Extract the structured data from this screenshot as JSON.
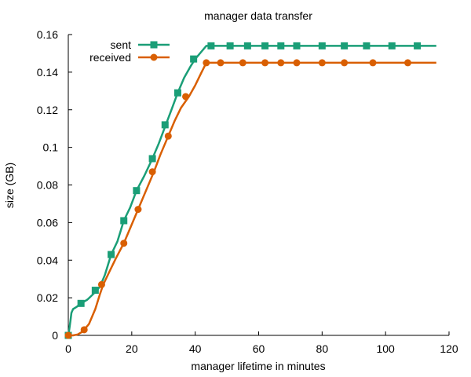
{
  "chart_data": {
    "type": "line",
    "title": "manager data transfer",
    "xlabel": "manager lifetime in minutes",
    "ylabel": "size (GB)",
    "xlim": [
      0,
      120
    ],
    "ylim": [
      0,
      0.16
    ],
    "xticks": [
      0,
      20,
      40,
      60,
      80,
      100,
      120
    ],
    "xtick_labels": [
      "0",
      "20",
      "40",
      "60",
      "80",
      "100",
      "120"
    ],
    "yticks": [
      0,
      0.02,
      0.04,
      0.06,
      0.08,
      0.1,
      0.12,
      0.14,
      0.16
    ],
    "ytick_labels": [
      "0",
      "0.02",
      "0.04",
      "0.06",
      "0.08",
      "0.1",
      "0.12",
      "0.14",
      "0.16"
    ],
    "grid": false,
    "legend_position": "top-left",
    "series": [
      {
        "name": "sent",
        "color": "#1a9e77",
        "marker": "square",
        "line": [
          [
            0,
            0
          ],
          [
            0.3,
            0.003
          ],
          [
            0.7,
            0.008
          ],
          [
            1,
            0.012
          ],
          [
            1.5,
            0.014
          ],
          [
            2.5,
            0.015
          ],
          [
            4,
            0.017
          ],
          [
            6,
            0.019
          ],
          [
            8.5,
            0.023
          ],
          [
            10,
            0.026
          ],
          [
            11.5,
            0.032
          ],
          [
            13.5,
            0.043
          ],
          [
            15.5,
            0.05
          ],
          [
            17.5,
            0.061
          ],
          [
            19.5,
            0.068
          ],
          [
            21.5,
            0.077
          ],
          [
            24,
            0.085
          ],
          [
            26.5,
            0.094
          ],
          [
            28.5,
            0.102
          ],
          [
            30.5,
            0.111
          ],
          [
            32.5,
            0.12
          ],
          [
            34.5,
            0.129
          ],
          [
            36.5,
            0.137
          ],
          [
            38.5,
            0.143
          ],
          [
            40,
            0.147
          ],
          [
            42,
            0.151
          ],
          [
            43.5,
            0.154
          ],
          [
            45,
            0.154
          ],
          [
            116,
            0.154
          ]
        ],
        "markers": [
          [
            0,
            0
          ],
          [
            4,
            0.017
          ],
          [
            8.5,
            0.024
          ],
          [
            13.5,
            0.043
          ],
          [
            17.5,
            0.061
          ],
          [
            21.5,
            0.077
          ],
          [
            26.5,
            0.094
          ],
          [
            30.5,
            0.112
          ],
          [
            34.5,
            0.129
          ],
          [
            39.5,
            0.147
          ],
          [
            45,
            0.154
          ],
          [
            51,
            0.154
          ],
          [
            56.5,
            0.154
          ],
          [
            62,
            0.154
          ],
          [
            67,
            0.154
          ],
          [
            72,
            0.154
          ],
          [
            80,
            0.154
          ],
          [
            87,
            0.154
          ],
          [
            94,
            0.154
          ],
          [
            102,
            0.154
          ],
          [
            110,
            0.154
          ]
        ]
      },
      {
        "name": "received",
        "color": "#d95f02",
        "marker": "circle",
        "line": [
          [
            0,
            0
          ],
          [
            1.5,
            0
          ],
          [
            3,
            0.0005
          ],
          [
            4.5,
            0.002
          ],
          [
            6.5,
            0.006
          ],
          [
            8.5,
            0.014
          ],
          [
            10,
            0.022
          ],
          [
            11,
            0.027
          ],
          [
            13,
            0.034
          ],
          [
            15,
            0.041
          ],
          [
            17.5,
            0.049
          ],
          [
            19.5,
            0.057
          ],
          [
            22,
            0.067
          ],
          [
            24.5,
            0.077
          ],
          [
            27,
            0.087
          ],
          [
            29,
            0.096
          ],
          [
            31.5,
            0.106
          ],
          [
            33.5,
            0.114
          ],
          [
            35.5,
            0.121
          ],
          [
            38,
            0.127
          ],
          [
            40,
            0.133
          ],
          [
            42,
            0.14
          ],
          [
            43.5,
            0.145
          ],
          [
            45,
            0.145
          ],
          [
            116,
            0.145
          ]
        ],
        "markers": [
          [
            0,
            0
          ],
          [
            5,
            0.003
          ],
          [
            10.5,
            0.027
          ],
          [
            17.5,
            0.049
          ],
          [
            22,
            0.067
          ],
          [
            26.5,
            0.087
          ],
          [
            31.5,
            0.106
          ],
          [
            37,
            0.127
          ],
          [
            43.5,
            0.145
          ],
          [
            48,
            0.145
          ],
          [
            55,
            0.145
          ],
          [
            62,
            0.145
          ],
          [
            67,
            0.145
          ],
          [
            72,
            0.145
          ],
          [
            80,
            0.145
          ],
          [
            87,
            0.145
          ],
          [
            96,
            0.145
          ],
          [
            107,
            0.145
          ]
        ]
      }
    ]
  }
}
